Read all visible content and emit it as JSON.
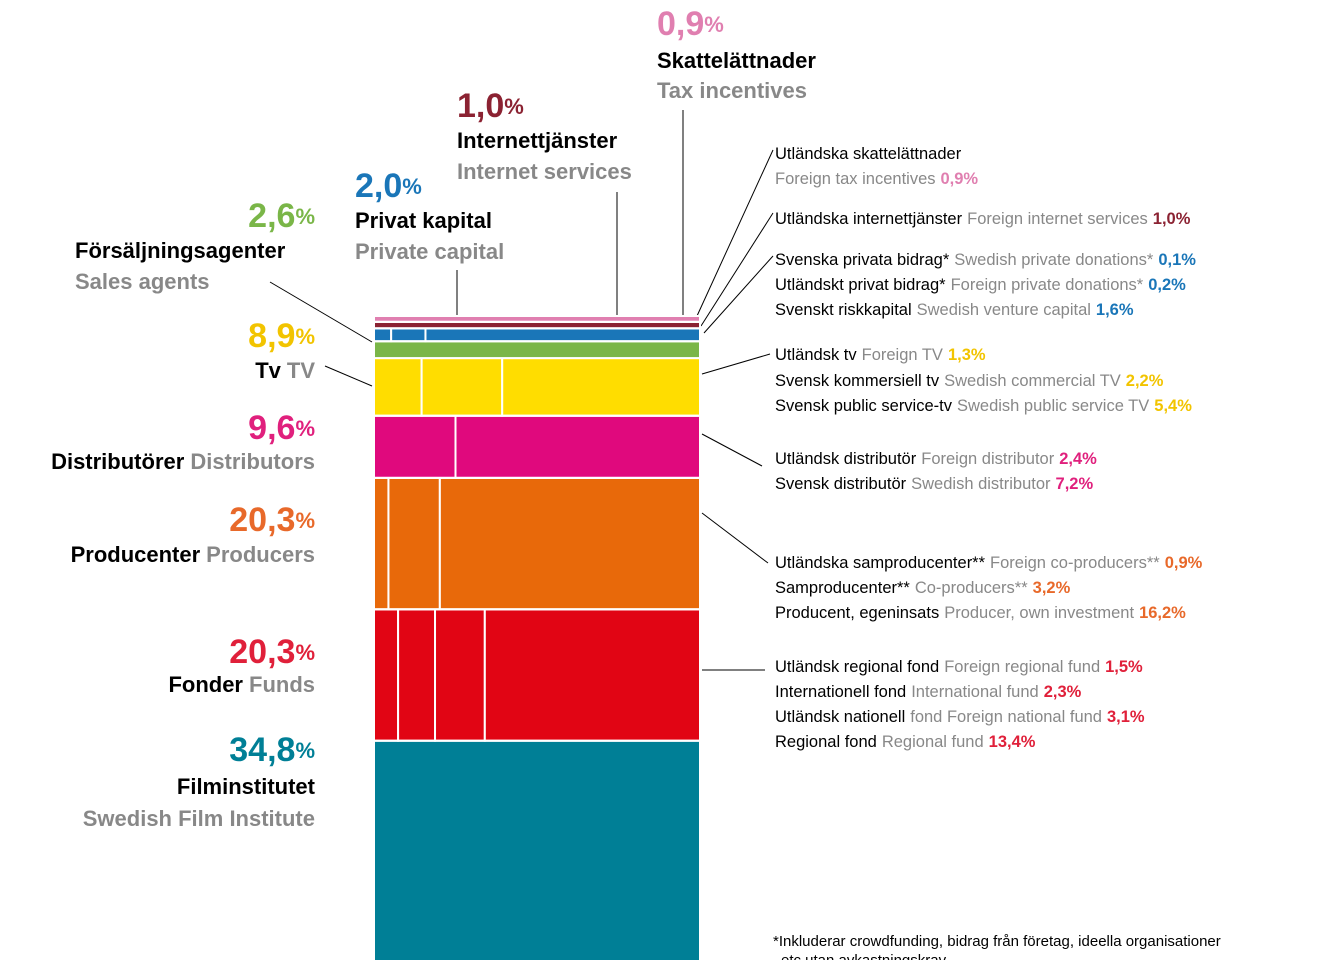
{
  "chart_data": {
    "type": "stacked_column",
    "footnote": [
      "*Inkluderar crowdfunding, bidrag från företag, ideella organisationer",
      "etc utan avkastningskrav"
    ],
    "series": [
      {
        "name": "Filminstitutet",
        "name_en": "Swedish Film Institute",
        "value": 34.8,
        "value_label": "34,8%",
        "color": "#007f96",
        "text_color": "#007f96",
        "parts": []
      },
      {
        "name": "Fonder",
        "name_en": "Funds",
        "value": 20.3,
        "value_label": "20,3%",
        "color": "#e10514",
        "text_color": "#e0203a",
        "parts": [
          {
            "name": "Utländsk regional fond",
            "name_en": "Foreign regional fund",
            "value": 1.5,
            "value_label": "1,5%"
          },
          {
            "name": "Internationell fond",
            "name_en": "International fund",
            "value": 2.3,
            "value_label": "2,3%"
          },
          {
            "name": "Utländsk nationell",
            "name_en": "fond Foreign national fund",
            "value": 3.1,
            "value_label": "3,1%"
          },
          {
            "name": "Regional fond",
            "name_en": "Regional fund",
            "value": 13.4,
            "value_label": "13,4%"
          }
        ]
      },
      {
        "name": "Producenter",
        "name_en": "Producers",
        "value": 20.3,
        "value_label": "20,3%",
        "color": "#e8690a",
        "text_color": "#e8692a",
        "parts": [
          {
            "name": "Utländska samproducenter**",
            "name_en": "Foreign co-producers**",
            "value": 0.9,
            "value_label": "0,9%"
          },
          {
            "name": "Samproducenter**",
            "name_en": "Co-producers**",
            "value": 3.2,
            "value_label": "3,2%"
          },
          {
            "name": "Producent, egeninsats",
            "name_en": "Producer, own investment",
            "value": 16.2,
            "value_label": "16,2%"
          }
        ]
      },
      {
        "name": "Distributörer",
        "name_en": "Distributors",
        "value": 9.6,
        "value_label": "9,6%",
        "color": "#e0097d",
        "text_color": "#e0207d",
        "parts": [
          {
            "name": "Utländsk distributör",
            "name_en": "Foreign distributor",
            "value": 2.4,
            "value_label": "2,4%"
          },
          {
            "name": "Svensk distributör",
            "name_en": "Swedish distributor",
            "value": 7.2,
            "value_label": "7,2%"
          }
        ]
      },
      {
        "name": "Tv",
        "name_en": "TV",
        "value": 8.9,
        "value_label": "8,9%",
        "color": "#ffdd00",
        "text_color": "#f2c400",
        "parts": [
          {
            "name": "Utländsk tv",
            "name_en": "Foreign TV",
            "value": 1.3,
            "value_label": "1,3%"
          },
          {
            "name": "Svensk kommersiell tv",
            "name_en": "Swedish commercial TV",
            "value": 2.2,
            "value_label": "2,2%"
          },
          {
            "name": "Svensk public service-tv",
            "name_en": "Swedish public service TV",
            "value": 5.4,
            "value_label": "5,4%"
          }
        ]
      },
      {
        "name": "Försäljningsagenter",
        "name_en": "Sales agents",
        "value": 2.6,
        "value_label": "2,6%",
        "color": "#7ab648",
        "text_color": "#7ab648",
        "parts": []
      },
      {
        "name": "Privat kapital",
        "name_en": "Private capital",
        "value": 2.0,
        "value_label": "2,0%",
        "color": "#1a76b8",
        "text_color": "#1a76b8",
        "parts": [
          {
            "name": "Svenska privata bidrag*",
            "name_en": "Swedish private donations*",
            "value": 0.1,
            "value_label": "0,1%"
          },
          {
            "name": "Utländskt privat bidrag*",
            "name_en": "Foreign private donations*",
            "value": 0.2,
            "value_label": "0,2%"
          },
          {
            "name": "Svenskt riskkapital",
            "name_en": "Swedish venture capital",
            "value": 1.6,
            "value_label": "1,6%"
          }
        ]
      },
      {
        "name": "Internettjänster",
        "name_en": "Internet services",
        "value": 1.0,
        "value_label": "1,0%",
        "color": "#8b2232",
        "text_color": "#8b2232",
        "parts": [
          {
            "name": "Utländska internettjänster",
            "name_en": "Foreign internet services",
            "value": 1.0,
            "value_label": "1,0%"
          }
        ]
      },
      {
        "name": "Skattelättnader",
        "name_en": "Tax incentives",
        "value": 0.9,
        "value_label": "0,9%",
        "color": "#e07fb0",
        "text_color": "#e07fb0",
        "parts": [
          {
            "name": "Utländska skattelättnader",
            "name_en": "Foreign tax incentives",
            "value": 0.9,
            "value_label": "0,9%"
          }
        ]
      }
    ]
  }
}
